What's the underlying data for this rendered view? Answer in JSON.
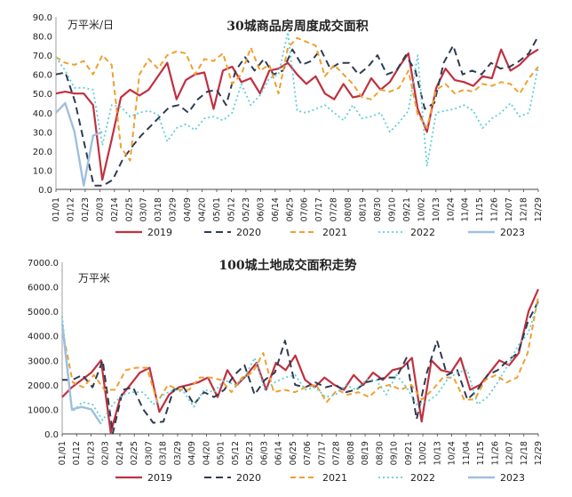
{
  "chart_data": [
    {
      "type": "line",
      "title": "30城商品房周度成交面积",
      "unit_label": "万平米/日",
      "ylim": [
        0,
        90
      ],
      "yticks": [
        "0.0",
        "10.0",
        "20.0",
        "30.0",
        "40.0",
        "50.0",
        "60.0",
        "70.0",
        "80.0",
        "90.0"
      ],
      "x_tick_labels": [
        "01/01",
        "01/12",
        "01/23",
        "02/03",
        "02/14",
        "02/25",
        "03/07",
        "03/18",
        "03/29",
        "04/09",
        "04/20",
        "05/01",
        "05/12",
        "05/23",
        "06/03",
        "06/14",
        "06/25",
        "07/06",
        "07/17",
        "07/28",
        "08/08",
        "08/19",
        "08/30",
        "09/10",
        "09/21",
        "10/02",
        "10/13",
        "10/24",
        "11/04",
        "11/15",
        "11/26",
        "12/07",
        "12/18",
        "12/29"
      ],
      "legend_position": "bottom",
      "colors": {
        "2019": "#c0303f",
        "2020": "#2f3b52",
        "2021": "#f0a030",
        "2022": "#5fcfd6",
        "2023": "#9fbfe0"
      },
      "series": [
        {
          "name": "2019",
          "values": [
            50,
            51,
            50,
            50,
            44,
            5,
            26,
            48,
            52,
            49,
            52,
            59,
            66,
            47,
            57,
            60,
            61,
            42,
            62,
            64,
            56,
            58,
            50,
            62,
            63,
            66,
            60,
            55,
            59,
            50,
            47,
            55,
            48,
            49,
            58,
            52,
            56,
            64,
            71,
            42,
            30,
            53,
            63,
            57,
            56,
            54,
            59,
            58,
            73,
            62,
            65,
            70,
            73
          ]
        },
        {
          "name": "2020",
          "values": [
            60,
            61,
            46,
            24,
            2,
            2,
            5,
            15,
            22,
            28,
            33,
            38,
            43,
            44,
            40,
            47,
            51,
            52,
            44,
            62,
            69,
            62,
            68,
            60,
            62,
            73,
            65,
            67,
            73,
            63,
            66,
            66,
            60,
            64,
            70,
            60,
            62,
            70,
            62,
            42,
            45,
            66,
            75,
            60,
            62,
            60,
            66,
            63,
            64,
            67,
            71,
            80
          ]
        },
        {
          "name": "2021",
          "values": [
            69,
            66,
            65,
            67,
            60,
            70,
            65,
            22,
            15,
            60,
            68,
            63,
            70,
            72,
            71,
            60,
            68,
            67,
            71,
            55,
            60,
            74,
            62,
            65,
            50,
            74,
            79,
            77,
            75,
            59,
            65,
            60,
            55,
            48,
            47,
            52,
            51,
            53,
            62,
            39,
            32,
            52,
            55,
            50,
            52,
            51,
            55,
            54,
            56,
            55,
            50,
            58,
            64
          ]
        },
        {
          "name": "2022",
          "values": [
            69,
            62,
            53,
            53,
            52,
            23,
            44,
            43,
            38,
            40,
            41,
            39,
            25,
            32,
            34,
            31,
            37,
            38,
            36,
            40,
            55,
            44,
            49,
            58,
            60,
            82,
            41,
            40,
            42,
            44,
            40,
            36,
            44,
            37,
            38,
            40,
            30,
            35,
            41,
            70,
            12,
            40,
            41,
            42,
            44,
            41,
            32,
            37,
            40,
            45,
            38,
            40,
            64
          ]
        },
        {
          "name": "2023",
          "values": [
            40,
            45,
            30,
            2,
            28,
            30
          ]
        }
      ]
    },
    {
      "type": "line",
      "title": "100城土地成交面积走势",
      "unit_label": "万平米",
      "ylim": [
        0,
        7000
      ],
      "yticks": [
        "0.0",
        "1000.0",
        "2000.0",
        "3000.0",
        "4000.0",
        "5000.0",
        "6000.0",
        "7000.0"
      ],
      "x_tick_labels": [
        "01/01",
        "01/12",
        "01/23",
        "02/03",
        "02/14",
        "02/25",
        "03/07",
        "03/18",
        "03/29",
        "04/09",
        "04/20",
        "05/01",
        "05/12",
        "05/23",
        "06/03",
        "06/14",
        "06/25",
        "07/06",
        "07/17",
        "07/28",
        "08/08",
        "08/19",
        "08/30",
        "09/10",
        "09/21",
        "10/02",
        "10/13",
        "10/24",
        "11/04",
        "11/15",
        "11/26",
        "12/07",
        "12/18",
        "12/29"
      ],
      "legend_position": "bottom",
      "colors": {
        "2019": "#c0303f",
        "2020": "#2f3b52",
        "2021": "#f0a030",
        "2022": "#5fcfd6",
        "2023": "#9fbfe0"
      },
      "series": [
        {
          "name": "2019",
          "values": [
            1500,
            1900,
            2200,
            2500,
            3000,
            50,
            1500,
            2000,
            2500,
            2700,
            900,
            1600,
            1900,
            2000,
            2100,
            2300,
            1500,
            2600,
            2000,
            2400,
            2900,
            1800,
            2900,
            2600,
            3200,
            2200,
            1900,
            2300,
            2000,
            1800,
            2400,
            2000,
            2500,
            2200,
            2600,
            2700,
            3100,
            500,
            3000,
            2600,
            2500,
            3100,
            1800,
            2000,
            2500,
            3000,
            2800,
            3300,
            5000,
            5900
          ]
        },
        {
          "name": "2020",
          "values": [
            2200,
            2200,
            2400,
            1900,
            3000,
            20,
            1800,
            1900,
            1000,
            450,
            500,
            1800,
            1900,
            1200,
            1700,
            1500,
            1800,
            2400,
            2800,
            1600,
            2200,
            2500,
            3800,
            2000,
            1900,
            2100,
            1900,
            2000,
            1700,
            1800,
            2100,
            2200,
            2300,
            2300,
            3100,
            600,
            2500,
            3800,
            2400,
            2600,
            1400,
            1800,
            2400,
            2600,
            3000,
            3300,
            4600,
            5400
          ]
        },
        {
          "name": "2021",
          "values": [
            4300,
            2100,
            1900,
            2400,
            1800,
            1800,
            2600,
            2700,
            2700,
            1300,
            2000,
            1800,
            1800,
            2300,
            2300,
            2200,
            1700,
            2300,
            2500,
            3300,
            1700,
            1800,
            1700,
            1900,
            2000,
            1300,
            1800,
            1600,
            1700,
            1500,
            1900,
            2000,
            1800,
            2000,
            1400,
            1800,
            2300,
            2300,
            1400,
            1400,
            2200,
            2400,
            2100,
            2300,
            3300,
            5600
          ]
        },
        {
          "name": "2022",
          "values": [
            4800,
            900,
            1300,
            1200,
            550,
            1200,
            1600,
            1700,
            1700,
            1200,
            1600,
            1800,
            1700,
            1100,
            1800,
            1700,
            2200,
            2000,
            2300,
            3100,
            1800,
            2100,
            2300,
            2400,
            1800,
            1900,
            1500,
            1600,
            2000,
            1800,
            2200,
            2200,
            1600,
            2400,
            1900,
            1200,
            1300,
            1600,
            2200,
            2500,
            2600,
            1200,
            1500,
            2100,
            2800,
            3600,
            4100,
            5400
          ]
        },
        {
          "name": "2023",
          "values": [
            4500,
            1000,
            1100,
            1000,
            400
          ]
        }
      ]
    }
  ]
}
